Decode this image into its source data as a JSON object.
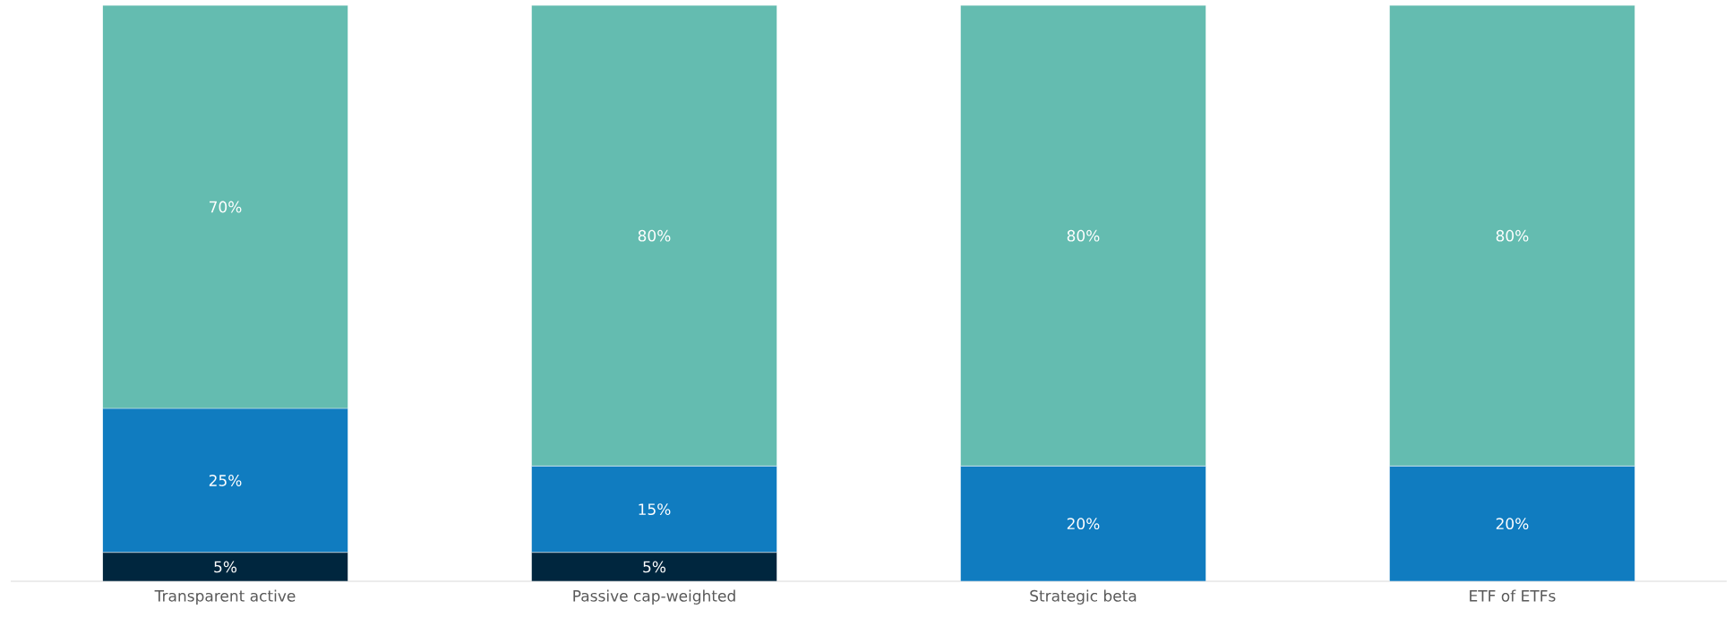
{
  "chart_data": {
    "type": "bar",
    "stacked": true,
    "categories": [
      "Transparent active",
      "Passive cap-weighted",
      "Strategic beta",
      "ETF of ETFs"
    ],
    "series": [
      {
        "color": "#00263e",
        "values": [
          5,
          5,
          0,
          0
        ],
        "value_labels": [
          "5%",
          "5%",
          null,
          null
        ]
      },
      {
        "color": "#107cc0",
        "values": [
          25,
          15,
          20,
          20
        ],
        "value_labels": [
          "25%",
          "15%",
          "20%",
          "20%"
        ]
      },
      {
        "color": "#64bcb0",
        "values": [
          70,
          80,
          80,
          80
        ],
        "value_labels": [
          "70%",
          "80%",
          "80%",
          "80%"
        ]
      }
    ],
    "ylim": [
      0,
      100
    ],
    "tick_labels": "x"
  }
}
